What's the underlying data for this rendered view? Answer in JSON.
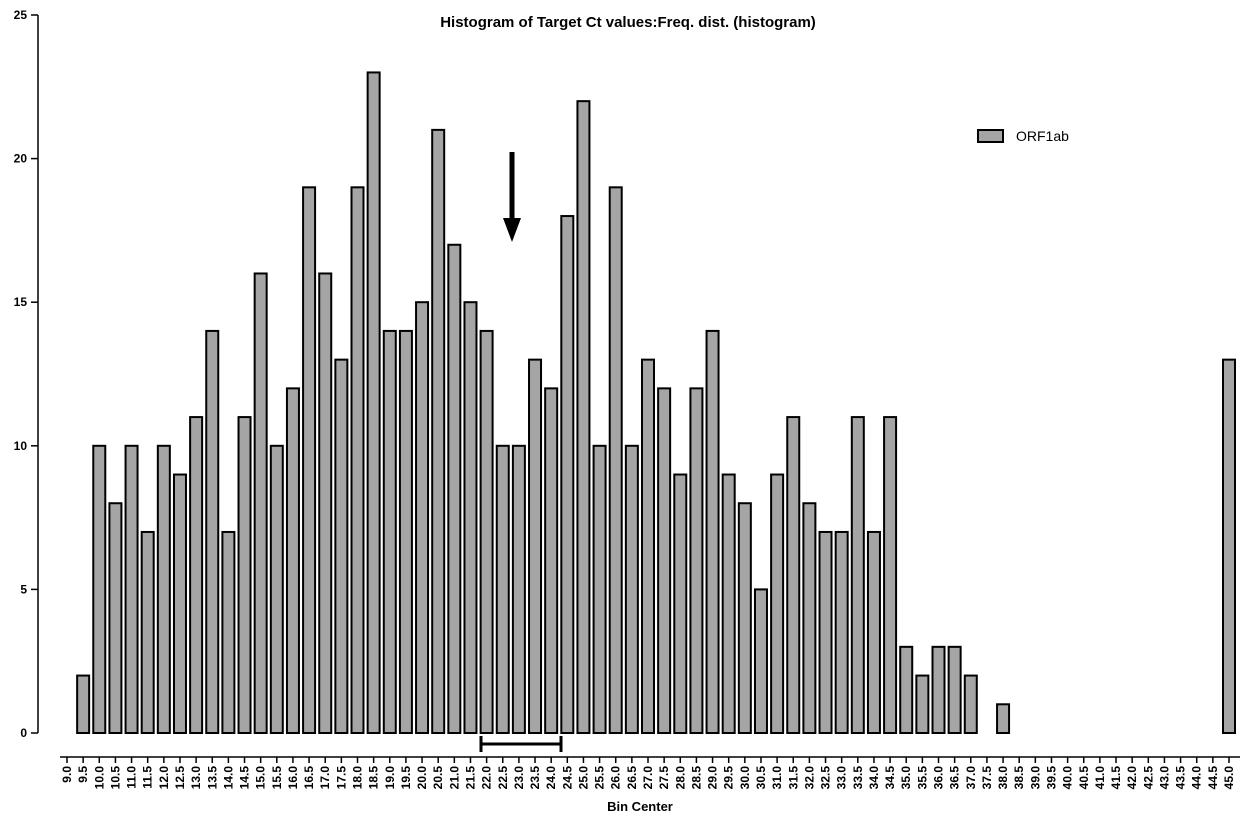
{
  "chart_data": {
    "type": "bar",
    "title": "Histogram of Target Ct values:Freq. dist. (histogram)",
    "x_label": "Bin Center",
    "categories": [
      "9.0",
      "9.5",
      "10.0",
      "10.5",
      "11.0",
      "11.5",
      "12.0",
      "12.5",
      "13.0",
      "13.5",
      "14.0",
      "14.5",
      "15.0",
      "15.5",
      "16.0",
      "16.5",
      "17.0",
      "17.5",
      "18.0",
      "18.5",
      "19.0",
      "19.5",
      "20.0",
      "20.5",
      "21.0",
      "21.5",
      "22.0",
      "22.5",
      "23.0",
      "23.5",
      "24.0",
      "24.5",
      "25.0",
      "25.5",
      "26.0",
      "26.5",
      "27.0",
      "27.5",
      "28.0",
      "28.5",
      "29.0",
      "29.5",
      "30.0",
      "30.5",
      "31.0",
      "31.5",
      "32.0",
      "32.5",
      "33.0",
      "33.5",
      "34.0",
      "34.5",
      "35.0",
      "35.5",
      "36.0",
      "36.5",
      "37.0",
      "37.5",
      "38.0",
      "38.5",
      "39.0",
      "39.5",
      "40.0",
      "40.5",
      "41.0",
      "41.5",
      "42.0",
      "42.5",
      "43.0",
      "43.5",
      "44.0",
      "44.5",
      "45.0"
    ],
    "series": [
      {
        "name": "ORF1ab",
        "color": "#a5a5a5",
        "values": [
          0,
          2,
          10,
          8,
          10,
          7,
          10,
          9,
          11,
          14,
          7,
          11,
          16,
          10,
          12,
          19,
          16,
          13,
          19,
          23,
          14,
          14,
          15,
          21,
          17,
          15,
          14,
          10,
          10,
          13,
          12,
          18,
          22,
          10,
          19,
          10,
          13,
          12,
          9,
          12,
          14,
          9,
          8,
          5,
          9,
          11,
          8,
          7,
          7,
          11,
          7,
          11,
          3,
          2,
          3,
          3,
          2,
          0,
          1,
          0,
          0,
          0,
          0,
          0,
          0,
          0,
          0,
          0,
          0,
          0,
          0,
          0,
          13
        ]
      }
    ],
    "ylim": [
      0,
      25
    ],
    "yticks": [
      0,
      5,
      10,
      15,
      20,
      25
    ],
    "grid": false,
    "legend": "top-right"
  }
}
